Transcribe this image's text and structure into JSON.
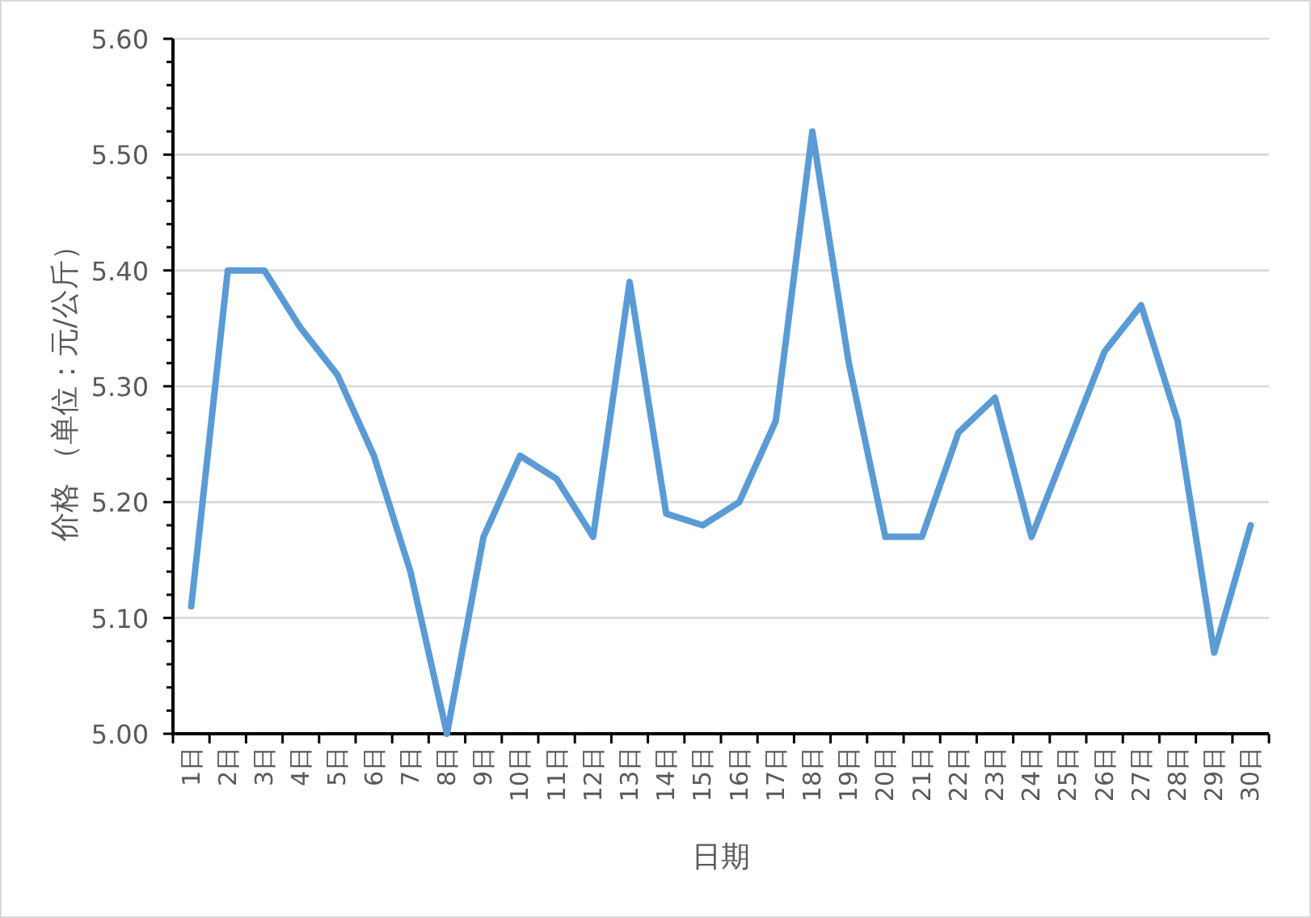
{
  "chart_data": {
    "type": "line",
    "categories": [
      "1日",
      "2日",
      "3日",
      "4日",
      "5日",
      "6日",
      "7日",
      "8日",
      "9日",
      "10日",
      "11日",
      "12日",
      "13日",
      "14日",
      "15日",
      "16日",
      "17日",
      "18日",
      "19日",
      "20日",
      "21日",
      "22日",
      "23日",
      "24日",
      "25日",
      "26日",
      "27日",
      "28日",
      "29日",
      "30日"
    ],
    "series": [
      {
        "color": "#5b9bd5",
        "values": [
          5.11,
          5.4,
          5.4,
          5.35,
          5.31,
          5.24,
          5.14,
          5.0,
          5.17,
          5.24,
          5.22,
          5.17,
          5.39,
          5.19,
          5.18,
          5.2,
          5.27,
          5.52,
          5.32,
          5.17,
          5.17,
          5.26,
          5.29,
          5.17,
          5.25,
          5.33,
          5.37,
          5.27,
          5.07,
          5.18
        ]
      }
    ],
    "xlabel": "日期",
    "ylabel": "价格 （单位：元/公斤）",
    "ylim": [
      5.0,
      5.6
    ],
    "yticks": [
      {
        "value": 5.0,
        "label": "5.00"
      },
      {
        "value": 5.02,
        "label": null
      },
      {
        "value": 5.04,
        "label": null
      },
      {
        "value": 5.06,
        "label": null
      },
      {
        "value": 5.08,
        "label": null
      },
      {
        "value": 5.1,
        "label": "5.10"
      },
      {
        "value": 5.12,
        "label": null
      },
      {
        "value": 5.14,
        "label": null
      },
      {
        "value": 5.16,
        "label": null
      },
      {
        "value": 5.18,
        "label": null
      },
      {
        "value": 5.2,
        "label": "5.20"
      },
      {
        "value": 5.22,
        "label": null
      },
      {
        "value": 5.24,
        "label": null
      },
      {
        "value": 5.26,
        "label": null
      },
      {
        "value": 5.28,
        "label": null
      },
      {
        "value": 5.3,
        "label": "5.30"
      },
      {
        "value": 5.32,
        "label": null
      },
      {
        "value": 5.34,
        "label": null
      },
      {
        "value": 5.36,
        "label": null
      },
      {
        "value": 5.38,
        "label": null
      },
      {
        "value": 5.4,
        "label": "5.40"
      },
      {
        "value": 5.42,
        "label": null
      },
      {
        "value": 5.44,
        "label": null
      },
      {
        "value": 5.46,
        "label": null
      },
      {
        "value": 5.48,
        "label": null
      },
      {
        "value": 5.5,
        "label": "5.50"
      },
      {
        "value": 5.52,
        "label": null
      },
      {
        "value": 5.54,
        "label": null
      },
      {
        "value": 5.56,
        "label": null
      },
      {
        "value": 5.58,
        "label": null
      },
      {
        "value": 5.6,
        "label": "5.60"
      }
    ],
    "grid": "y",
    "marker": "none",
    "line_style": "solid"
  }
}
